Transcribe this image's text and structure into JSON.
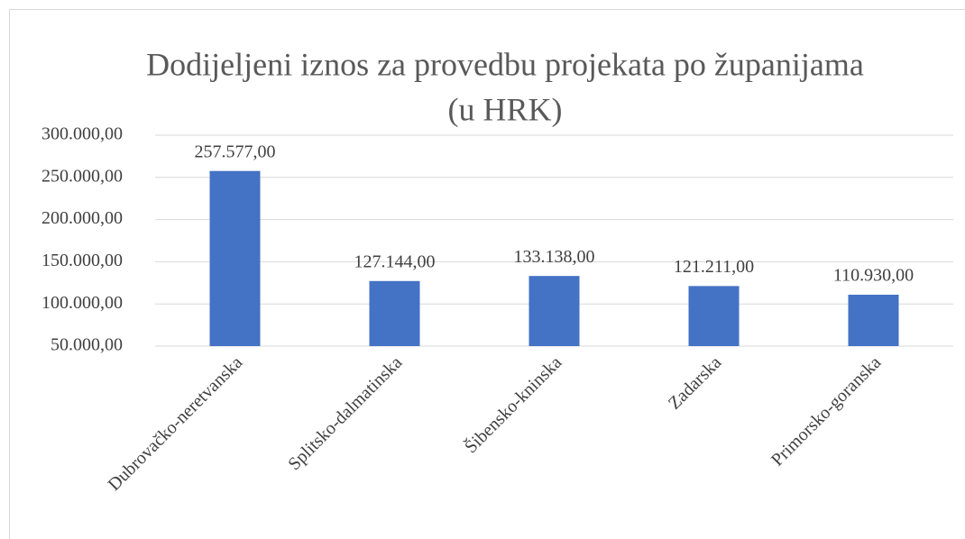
{
  "chart_data": {
    "type": "bar",
    "title": [
      "Dodijeljeni iznos za provedbu projekata po županijama",
      "(u HRK)"
    ],
    "categories": [
      "Dubrovačko-neretvanska",
      "Splitsko-dalmatinska",
      "Šibensko-kninska",
      "Zadarska",
      "Primorsko-goranska"
    ],
    "values": [
      257577,
      127144,
      133138,
      121211,
      110930
    ],
    "value_labels": [
      "257.577,00",
      "127.144,00",
      "133.138,00",
      "121.211,00",
      "110.930,00"
    ],
    "color": "#4472c4",
    "ylim": [
      50000,
      300000
    ],
    "yticks": [
      {
        "value": 50000,
        "label": "50.000,00"
      },
      {
        "value": 100000,
        "label": "100.000,00"
      },
      {
        "value": 150000,
        "label": "150.000,00"
      },
      {
        "value": 200000,
        "label": "200.000,00"
      },
      {
        "value": 250000,
        "label": "250.000,00"
      },
      {
        "value": 300000,
        "label": "300.000,00"
      }
    ],
    "grid": true
  }
}
